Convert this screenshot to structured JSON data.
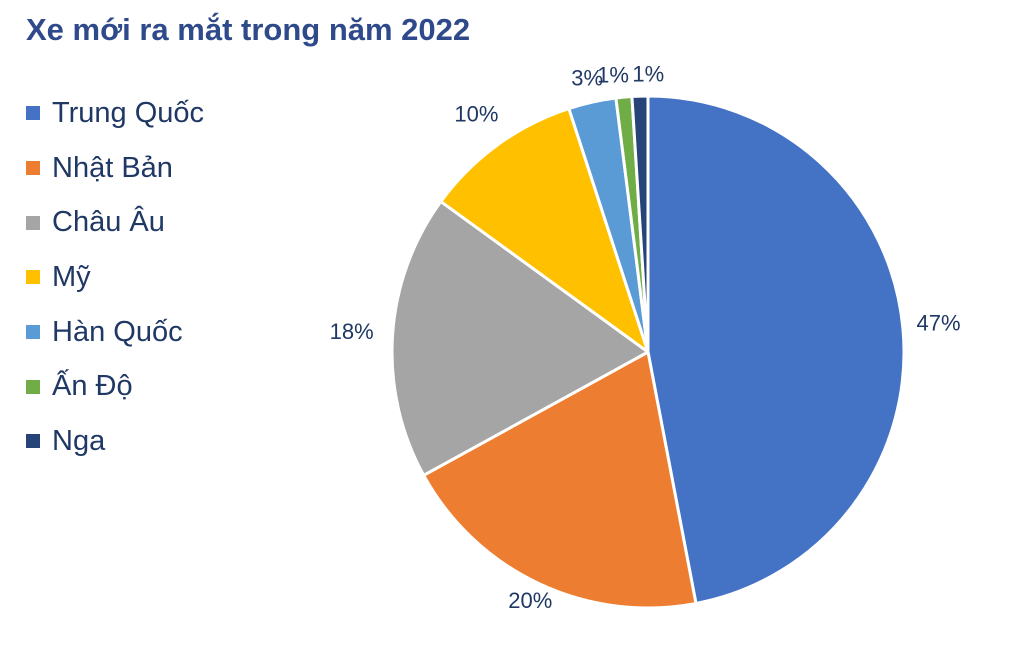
{
  "chart_data": {
    "type": "pie",
    "title": "Xe mới ra mắt trong năm 2022",
    "legend_position": "left",
    "categories": [
      "Trung Quốc",
      "Nhật Bản",
      "Châu Âu",
      "Mỹ",
      "Hàn Quốc",
      "Ấn Độ",
      "Nga"
    ],
    "values": [
      47,
      20,
      18,
      10,
      3,
      1,
      1
    ],
    "data_labels": [
      "47%",
      "20%",
      "18%",
      "10%",
      "3%",
      "1%",
      "1%"
    ],
    "colors": [
      "#4472c4",
      "#ed7d31",
      "#a5a5a5",
      "#ffc000",
      "#5b9bd5",
      "#70ad47",
      "#264478"
    ]
  }
}
